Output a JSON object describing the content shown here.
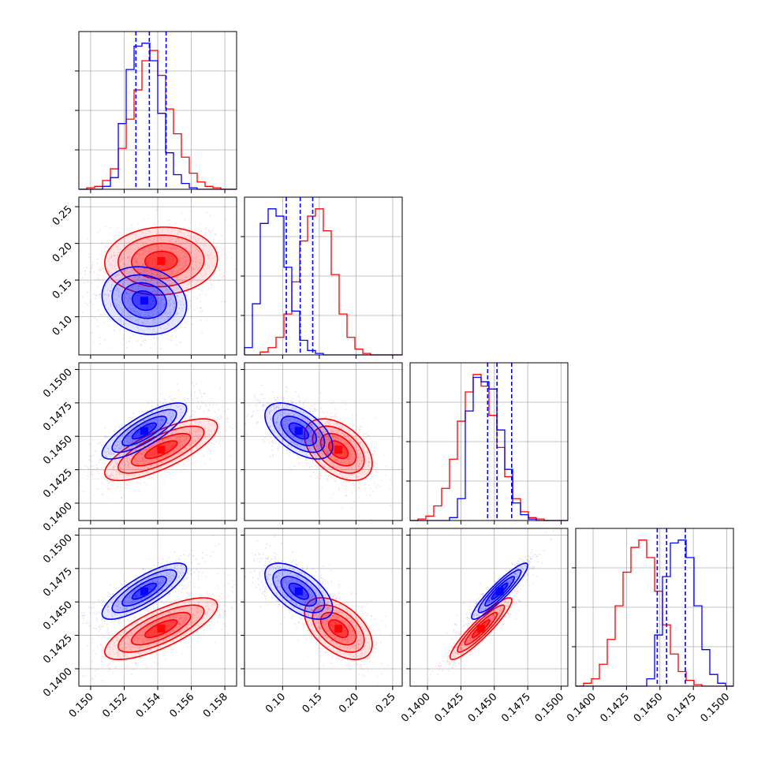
{
  "chart_data": {
    "type": "corner",
    "colors": {
      "blue": "#0000ff",
      "red": "#ff0000"
    },
    "grid": true,
    "params": [
      {
        "range": [
          0.1493,
          0.1587
        ],
        "ticks": [
          "0.150",
          "0.152",
          "0.154",
          "0.156",
          "0.158"
        ],
        "tick_values": [
          0.15,
          0.152,
          0.154,
          0.156,
          0.158
        ]
      },
      {
        "range": [
          0.048,
          0.263
        ],
        "ticks": [
          "0.10",
          "0.15",
          "0.20",
          "0.25"
        ],
        "tick_values": [
          0.1,
          0.15,
          0.2,
          0.25
        ]
      },
      {
        "range": [
          0.1387,
          0.1505
        ],
        "ticks": [
          "0.1400",
          "0.1425",
          "0.1450",
          "0.1475",
          "0.1500"
        ],
        "tick_values": [
          0.14,
          0.1425,
          0.145,
          0.1475,
          0.15
        ]
      },
      {
        "range": [
          0.1387,
          0.1505
        ],
        "ticks": [
          "0.1400",
          "0.1425",
          "0.1450",
          "0.1475",
          "0.1500"
        ],
        "tick_values": [
          0.14,
          0.1425,
          0.145,
          0.1475,
          0.15
        ]
      }
    ],
    "histograms": [
      {
        "edges_range": [
          0.1493,
          0.1587
        ],
        "bins": 20,
        "blue": [
          0,
          0,
          0,
          0.02,
          0.08,
          0.45,
          0.82,
          0.98,
          1.0,
          0.88,
          0.52,
          0.25,
          0.1,
          0.04,
          0.01,
          0,
          0,
          0,
          0,
          0
        ],
        "red": [
          0,
          0.01,
          0.02,
          0.06,
          0.14,
          0.28,
          0.48,
          0.68,
          0.88,
          0.95,
          0.78,
          0.55,
          0.38,
          0.22,
          0.11,
          0.05,
          0.02,
          0.01,
          0,
          0
        ],
        "quantiles": [
          0.1527,
          0.1535,
          0.1545
        ]
      },
      {
        "edges_range": [
          0.048,
          0.263
        ],
        "bins": 20,
        "blue": [
          0.05,
          0.35,
          0.9,
          1.0,
          0.95,
          0.6,
          0.3,
          0.1,
          0.03,
          0.01,
          0,
          0,
          0,
          0,
          0,
          0,
          0,
          0,
          0,
          0
        ],
        "red": [
          0,
          0,
          0.02,
          0.05,
          0.12,
          0.28,
          0.5,
          0.78,
          0.95,
          1.0,
          0.85,
          0.55,
          0.28,
          0.12,
          0.04,
          0.01,
          0,
          0,
          0,
          0
        ],
        "quantiles": [
          0.105,
          0.124,
          0.141
        ]
      },
      {
        "edges_range": [
          0.1387,
          0.1505
        ],
        "bins": 20,
        "blue": [
          0,
          0,
          0,
          0,
          0,
          0.02,
          0.15,
          0.75,
          0.98,
          0.95,
          0.9,
          0.62,
          0.35,
          0.12,
          0.04,
          0.01,
          0,
          0,
          0,
          0
        ],
        "red": [
          0,
          0.01,
          0.03,
          0.1,
          0.22,
          0.42,
          0.68,
          0.88,
          1.0,
          0.92,
          0.72,
          0.5,
          0.3,
          0.15,
          0.06,
          0.02,
          0.01,
          0,
          0,
          0
        ],
        "quantiles": [
          0.1445,
          0.1452,
          0.1463
        ]
      },
      {
        "edges_range": [
          0.1387,
          0.1505
        ],
        "bins": 20,
        "blue": [
          0,
          0,
          0,
          0,
          0,
          0,
          0,
          0,
          0,
          0.05,
          0.35,
          0.75,
          0.98,
          1.0,
          0.88,
          0.55,
          0.25,
          0.08,
          0.02,
          0
        ],
        "red": [
          0,
          0.02,
          0.05,
          0.15,
          0.32,
          0.55,
          0.78,
          0.95,
          1.0,
          0.88,
          0.65,
          0.42,
          0.22,
          0.1,
          0.04,
          0.01,
          0,
          0,
          0,
          0
        ],
        "quantiles": [
          0.1448,
          0.1455,
          0.1469
        ]
      }
    ],
    "contours": [
      {
        "row": 1,
        "col": 0,
        "blue": {
          "mean": [
            0.1532,
            0.122
          ],
          "sd": [
            0.0012,
            0.022
          ],
          "corr": -0.15
        },
        "red": {
          "mean": [
            0.1542,
            0.176
          ],
          "sd": [
            0.0016,
            0.022
          ],
          "corr": 0.05
        }
      },
      {
        "row": 2,
        "col": 0,
        "blue": {
          "mean": [
            0.1532,
            0.1454
          ],
          "sd": [
            0.0012,
            0.001
          ],
          "corr": 0.8
        },
        "red": {
          "mean": [
            0.1542,
            0.144
          ],
          "sd": [
            0.0016,
            0.0011
          ],
          "corr": 0.75
        }
      },
      {
        "row": 2,
        "col": 1,
        "blue": {
          "mean": [
            0.122,
            0.1454
          ],
          "sd": [
            0.022,
            0.001
          ],
          "corr": -0.55
        },
        "red": {
          "mean": [
            0.176,
            0.144
          ],
          "sd": [
            0.022,
            0.0011
          ],
          "corr": -0.45
        }
      },
      {
        "row": 3,
        "col": 0,
        "blue": {
          "mean": [
            0.1532,
            0.1458
          ],
          "sd": [
            0.0012,
            0.001
          ],
          "corr": 0.8
        },
        "red": {
          "mean": [
            0.1542,
            0.143
          ],
          "sd": [
            0.0016,
            0.0011
          ],
          "corr": 0.75
        }
      },
      {
        "row": 3,
        "col": 1,
        "blue": {
          "mean": [
            0.122,
            0.1458
          ],
          "sd": [
            0.022,
            0.001
          ],
          "corr": -0.6
        },
        "red": {
          "mean": [
            0.176,
            0.143
          ],
          "sd": [
            0.022,
            0.0011
          ],
          "corr": -0.5
        }
      },
      {
        "row": 3,
        "col": 2,
        "blue": {
          "mean": [
            0.1454,
            0.1458
          ],
          "sd": [
            0.001,
            0.001
          ],
          "corr": 0.92
        },
        "red": {
          "mean": [
            0.144,
            0.143
          ],
          "sd": [
            0.0011,
            0.0011
          ],
          "corr": 0.92
        }
      }
    ],
    "contour_levels_sigma": [
      0.6,
      1.1,
      1.6,
      2.1
    ]
  }
}
